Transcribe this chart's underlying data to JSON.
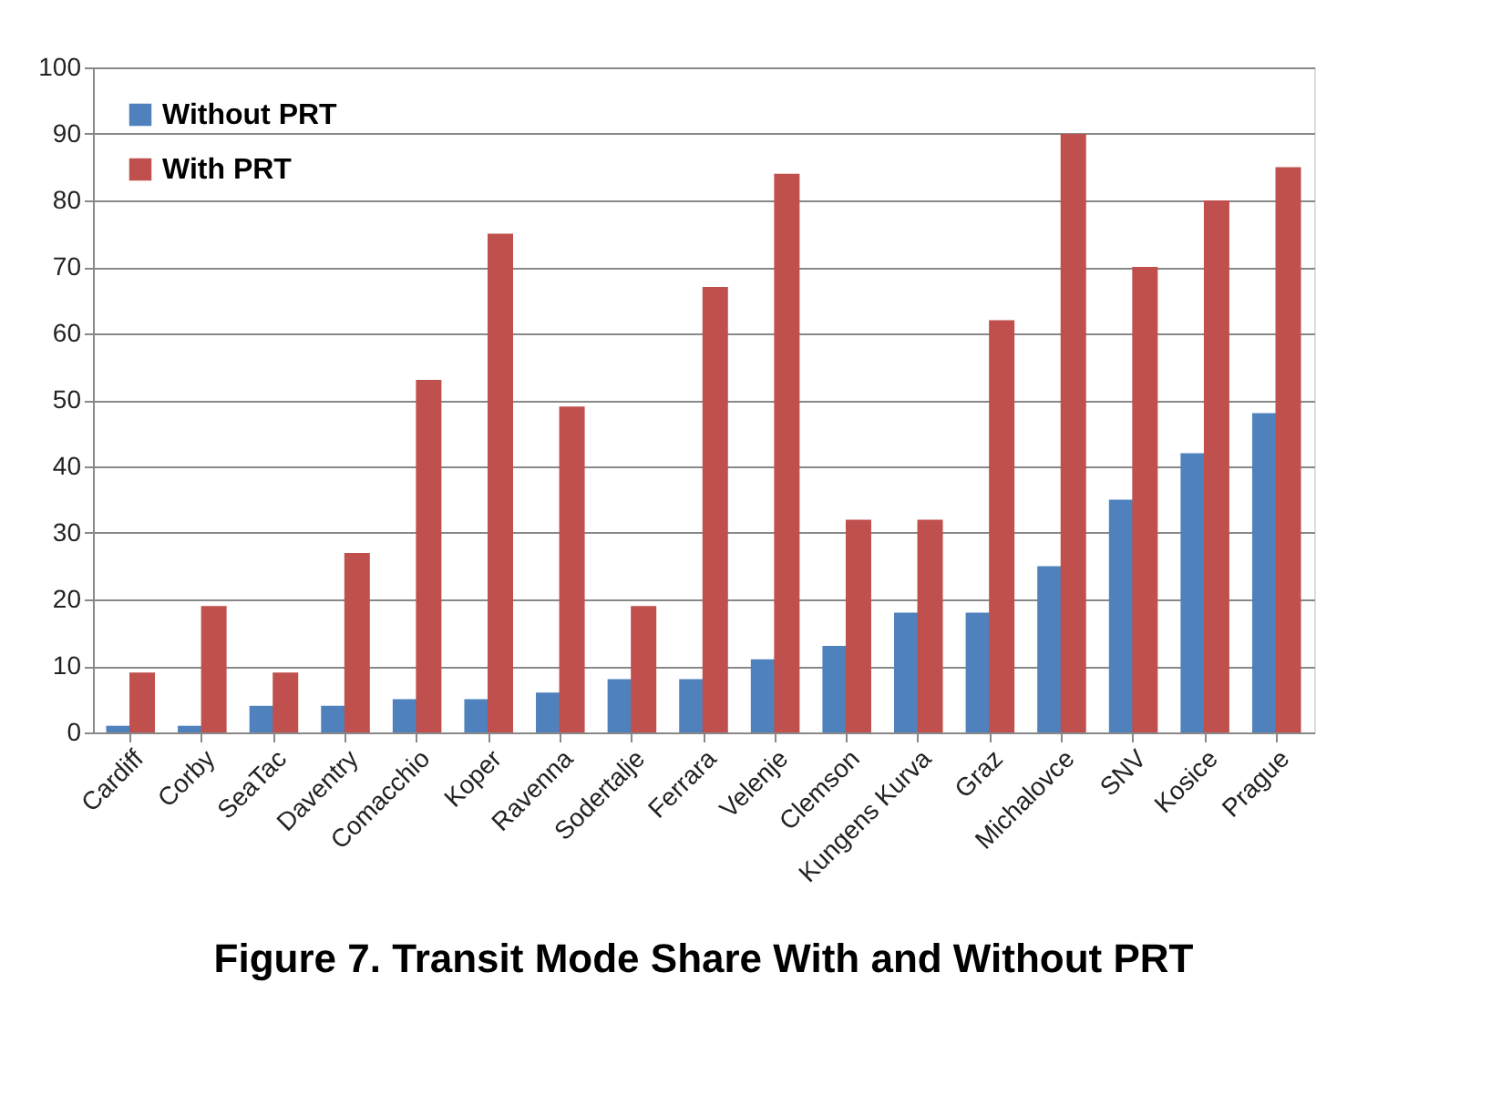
{
  "chart_data": {
    "type": "bar",
    "title": "Figure 7. Transit Mode Share With and Without PRT",
    "categories": [
      "Cardiff",
      "Corby",
      "SeaTac",
      "Daventry",
      "Comacchio",
      "Koper",
      "Ravenna",
      "Sodertalje",
      "Ferrara",
      "Velenje",
      "Clemson",
      "Kungens Kurva",
      "Graz",
      "Michalovce",
      "SNV",
      "Kosice",
      "Prague"
    ],
    "series": [
      {
        "name": "Without PRT",
        "color": "#4f81bd",
        "values": [
          1,
          1,
          4,
          4,
          5,
          5,
          6,
          8,
          8,
          11,
          13,
          18,
          18,
          25,
          35,
          42,
          48
        ]
      },
      {
        "name": "With PRT",
        "color": "#c0504d",
        "values": [
          9,
          19,
          9,
          27,
          53,
          75,
          49,
          19,
          67,
          84,
          32,
          32,
          62,
          90,
          70,
          80,
          85
        ]
      }
    ],
    "ylim": [
      0,
      100
    ],
    "yticks": [
      0,
      10,
      20,
      30,
      40,
      50,
      60,
      70,
      80,
      90,
      100
    ],
    "grid": "y",
    "legend": "top left"
  }
}
